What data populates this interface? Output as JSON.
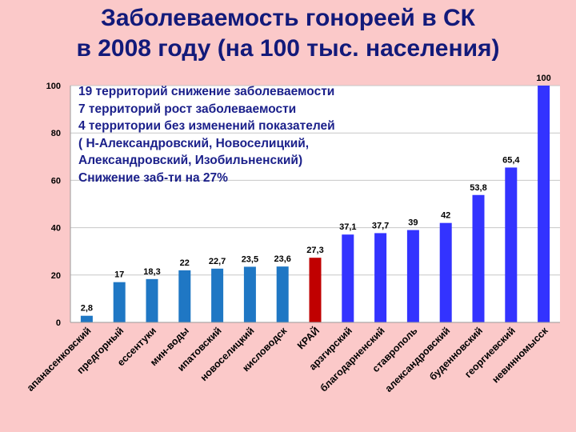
{
  "title": {
    "line1": "Заболеваемость гонореей в СК",
    "line2": "в 2008 году (на 100 тыс. населения)"
  },
  "annotation": [
    "19 территорий снижение заболеваемости",
    "7 территорий рост заболеваемости",
    "4 территории без изменений показателей",
    "( Н-Александровский, Новоселицкий,",
    "Александровский, Изобильненский)",
    "Снижение заб-ти на 27%"
  ],
  "chart_data": {
    "type": "bar",
    "categories": [
      "апанасенковский",
      "предгорный",
      "ессентуки",
      "мин-воды",
      "ипатовский",
      "новоселицкий",
      "кисловодск",
      "КРАЙ",
      "арзгирский",
      "благодарненский",
      "ставрополь",
      "александровский",
      "буденновский",
      "георгиевский",
      "невинномысск"
    ],
    "values": [
      2.8,
      17,
      18.3,
      22,
      22.7,
      23.5,
      23.6,
      27.3,
      37.1,
      37.7,
      39,
      42,
      53.8,
      65.4,
      100
    ],
    "data_labels": [
      "2,8",
      "17",
      "18,3",
      "22",
      "22,7",
      "23,5",
      "23,6",
      "27,3",
      "37,1",
      "37,7",
      "39",
      "42",
      "53,8",
      "65,4",
      "100"
    ],
    "yticks": [
      0,
      20,
      40,
      60,
      80,
      100
    ],
    "ylim": [
      0,
      100
    ],
    "grid": true,
    "colors": {
      "below_region": "#1f77c4",
      "region": "#c00000",
      "above_region": "#3333ff",
      "grid": "#c7c7c7",
      "background": "#fbc9c9",
      "plot_background": "#ffffff"
    }
  }
}
